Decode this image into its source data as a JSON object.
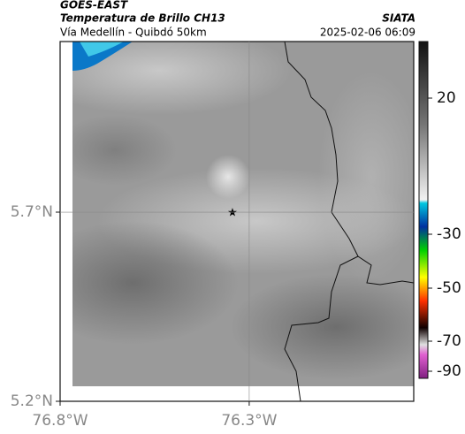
{
  "header": {
    "source": "GOES-EAST",
    "title": "Temperatura de Brillo CH13",
    "subtitle": "Vía Medellín - Quibdó 50km",
    "agency": "SIATA",
    "datetime": "2025-02-06 06:09"
  },
  "map": {
    "xlim": [
      -76.8,
      -75.865
    ],
    "ylim": [
      5.2,
      6.151
    ],
    "xticks": [
      {
        "value": -76.8,
        "label": "76.8°W"
      },
      {
        "value": -76.3,
        "label": "76.3°W"
      }
    ],
    "yticks": [
      {
        "value": 5.2,
        "label": "5.2°N"
      },
      {
        "value": 5.7,
        "label": "5.7°N"
      }
    ],
    "grid": true
  },
  "colorbar": {
    "ticks": [
      20,
      -30,
      -50,
      -70,
      -90
    ]
  }
}
